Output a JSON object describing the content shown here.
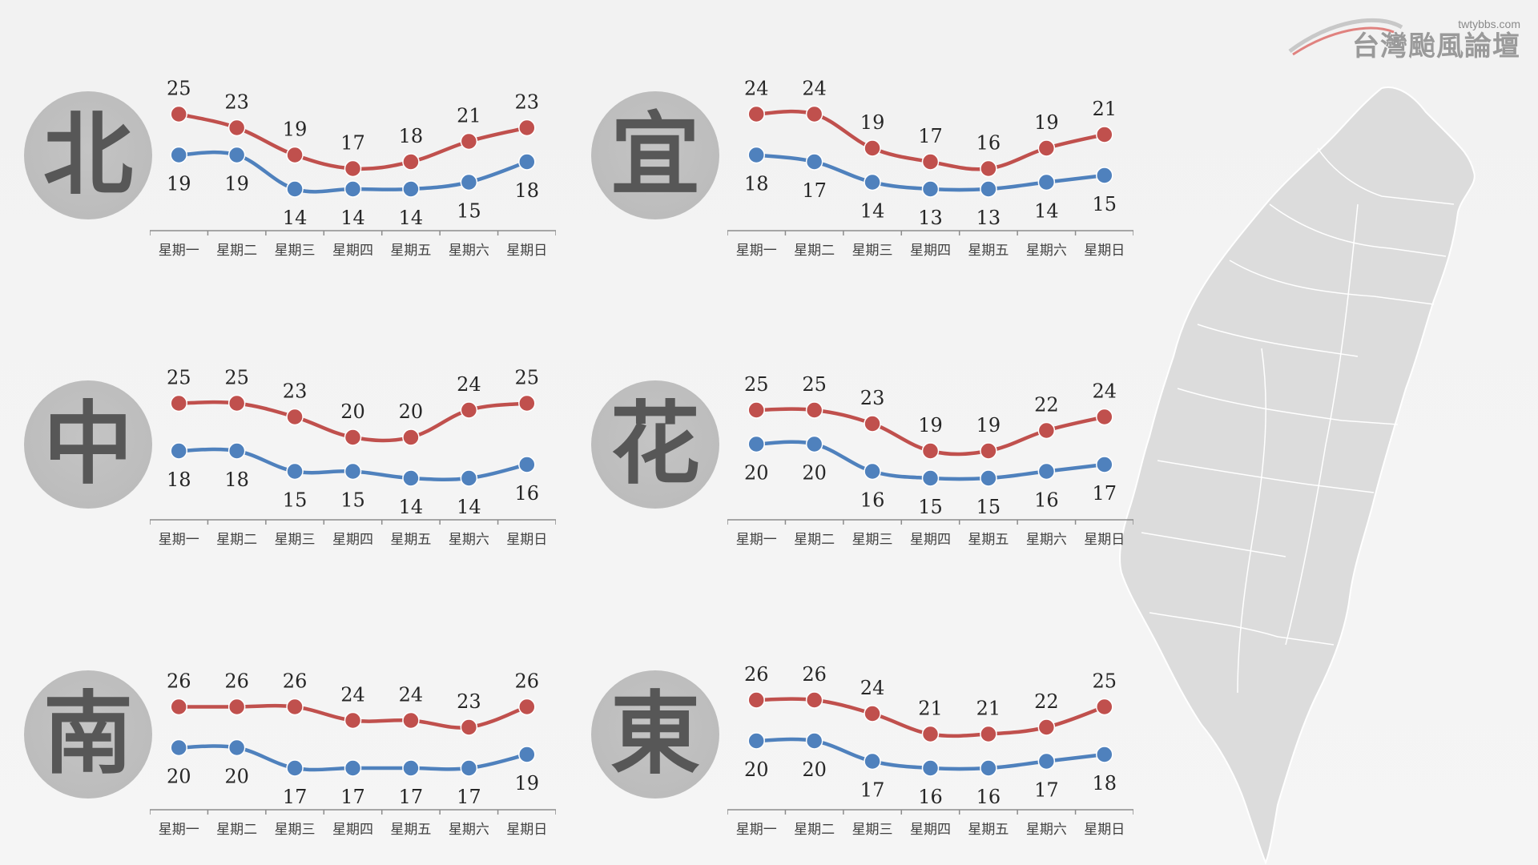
{
  "brand": {
    "url": "twtybbs.com",
    "name": "台灣颱風論壇"
  },
  "colors": {
    "high": "#C0504D",
    "low": "#4F81BD",
    "badge": "#BFBFBF",
    "map_fill": "#DCDCDC"
  },
  "chart_data": [
    {
      "type": "line",
      "region": "北",
      "categories": [
        "星期一",
        "星期二",
        "星期三",
        "星期四",
        "星期五",
        "星期六",
        "星期日"
      ],
      "series": [
        {
          "key": "high",
          "values": [
            25,
            23,
            19,
            17,
            18,
            21,
            23
          ]
        },
        {
          "key": "low",
          "values": [
            19,
            19,
            14,
            14,
            14,
            15,
            18
          ]
        }
      ]
    },
    {
      "type": "line",
      "region": "宜",
      "categories": [
        "星期一",
        "星期二",
        "星期三",
        "星期四",
        "星期五",
        "星期六",
        "星期日"
      ],
      "series": [
        {
          "key": "high",
          "values": [
            24,
            24,
            19,
            17,
            16,
            19,
            21
          ]
        },
        {
          "key": "low",
          "values": [
            18,
            17,
            14,
            13,
            13,
            14,
            15
          ]
        }
      ]
    },
    {
      "type": "line",
      "region": "中",
      "categories": [
        "星期一",
        "星期二",
        "星期三",
        "星期四",
        "星期五",
        "星期六",
        "星期日"
      ],
      "series": [
        {
          "key": "high",
          "values": [
            25,
            25,
            23,
            20,
            20,
            24,
            25
          ]
        },
        {
          "key": "low",
          "values": [
            18,
            18,
            15,
            15,
            14,
            14,
            16
          ]
        }
      ]
    },
    {
      "type": "line",
      "region": "花",
      "categories": [
        "星期一",
        "星期二",
        "星期三",
        "星期四",
        "星期五",
        "星期六",
        "星期日"
      ],
      "series": [
        {
          "key": "high",
          "values": [
            25,
            25,
            23,
            19,
            19,
            22,
            24
          ]
        },
        {
          "key": "low",
          "values": [
            20,
            20,
            16,
            15,
            15,
            16,
            17
          ]
        }
      ]
    },
    {
      "type": "line",
      "region": "南",
      "categories": [
        "星期一",
        "星期二",
        "星期三",
        "星期四",
        "星期五",
        "星期六",
        "星期日"
      ],
      "series": [
        {
          "key": "high",
          "values": [
            26,
            26,
            26,
            24,
            24,
            23,
            26
          ]
        },
        {
          "key": "low",
          "values": [
            20,
            20,
            17,
            17,
            17,
            17,
            19
          ]
        }
      ]
    },
    {
      "type": "line",
      "region": "東",
      "categories": [
        "星期一",
        "星期二",
        "星期三",
        "星期四",
        "星期五",
        "星期六",
        "星期日"
      ],
      "series": [
        {
          "key": "high",
          "values": [
            26,
            26,
            24,
            21,
            21,
            22,
            25
          ]
        },
        {
          "key": "low",
          "values": [
            20,
            20,
            17,
            16,
            16,
            17,
            18
          ]
        }
      ]
    }
  ]
}
